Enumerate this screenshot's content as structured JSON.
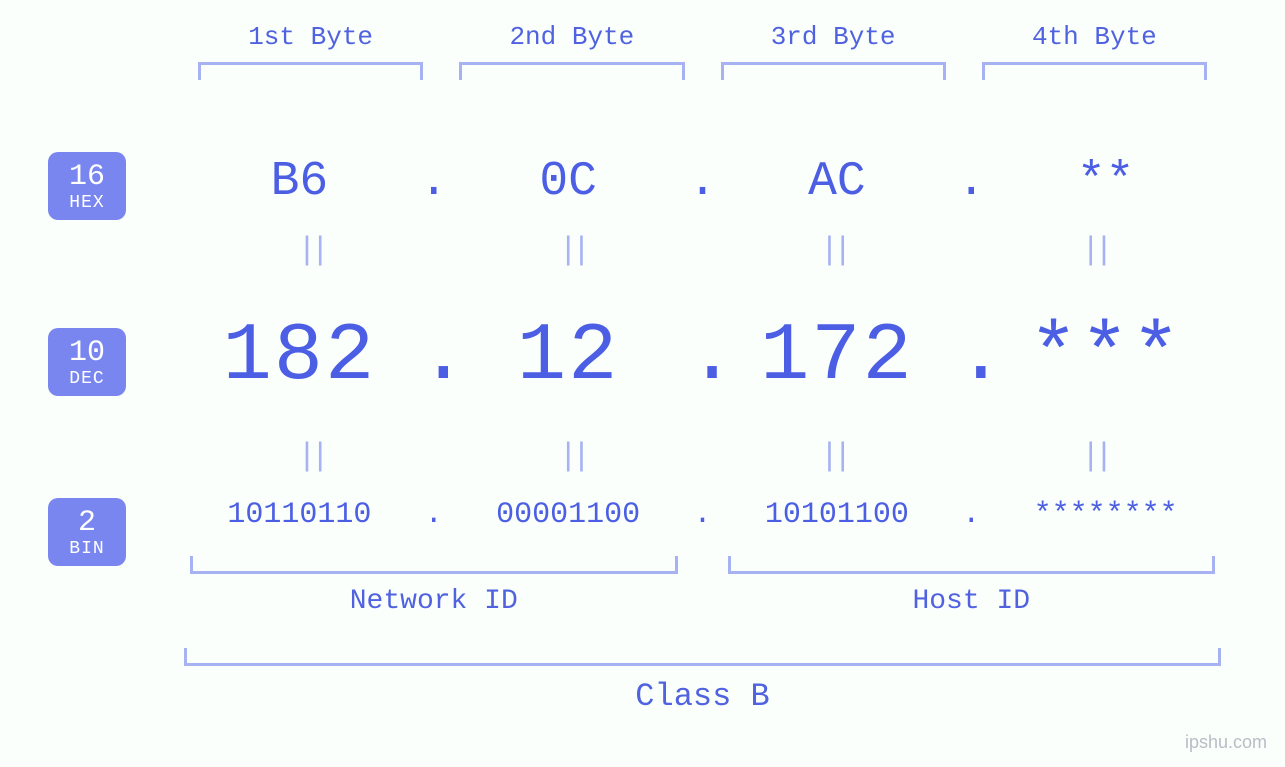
{
  "type": "infographic",
  "background_color": "#fafffb",
  "colors": {
    "text_primary": "#4b5ee4",
    "text_secondary": "#5062e0",
    "bracket": "#a7b2f2",
    "equals": "#a7b2f2",
    "badge_bg": "#7a86ef",
    "badge_fg": "#ffffff",
    "watermark": "#b8bdc6"
  },
  "fontsizes_pt": {
    "byte_label": 26,
    "hex": 48,
    "dec": 82,
    "bin": 30,
    "equals": 32,
    "id_label": 28,
    "class_label": 32,
    "badge_num": 30,
    "badge_txt": 18,
    "watermark": 18
  },
  "byte_headers": [
    "1st Byte",
    "2nd Byte",
    "3rd Byte",
    "4th Byte"
  ],
  "bases": {
    "hex": {
      "num": "16",
      "txt": "HEX"
    },
    "dec": {
      "num": "10",
      "txt": "DEC"
    },
    "bin": {
      "num": "2",
      "txt": "BIN"
    }
  },
  "octets": {
    "hex": [
      "B6",
      "0C",
      "AC",
      "**"
    ],
    "dec": [
      "182",
      "12",
      "172",
      "***"
    ],
    "bin": [
      "10110110",
      "00001100",
      "10101100",
      "********"
    ]
  },
  "dot": ".",
  "equals": "||",
  "id_labels": {
    "network": "Network ID",
    "host": "Host ID"
  },
  "class_label": "Class B",
  "watermark": "ipshu.com"
}
